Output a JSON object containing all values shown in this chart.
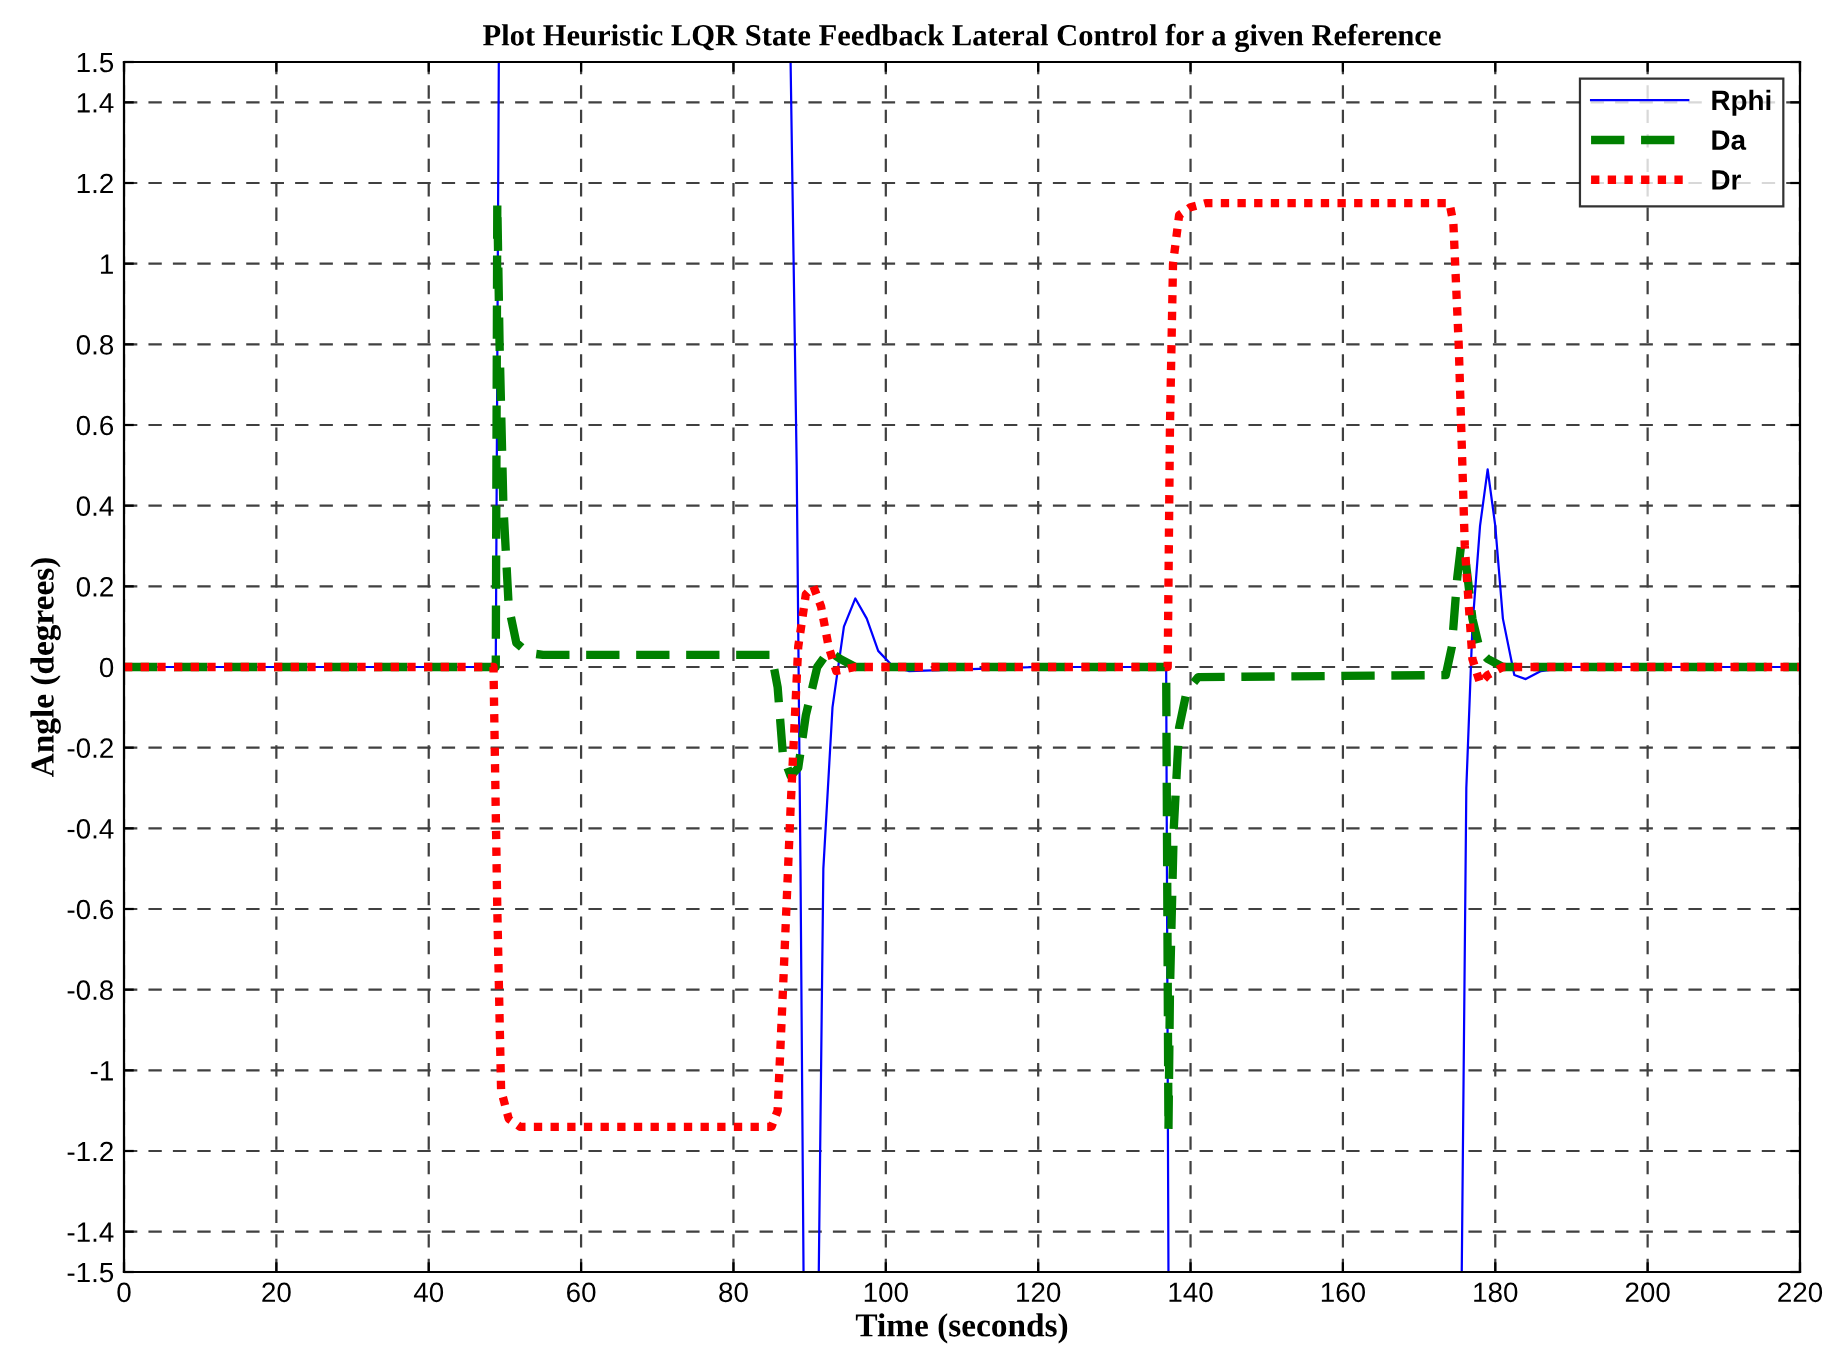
{
  "chart_data": {
    "type": "line",
    "title": "Plot Heuristic LQR State Feedback Lateral Control for a given Reference",
    "xlabel": "Time (seconds)",
    "ylabel": "Angle (degrees)",
    "xlim": [
      0,
      220
    ],
    "xticks": [
      0,
      20,
      40,
      60,
      80,
      100,
      120,
      140,
      160,
      180,
      200,
      220
    ],
    "ylim": [
      -1.5,
      1.5
    ],
    "yticks": [
      -1.5,
      -1.4,
      -1.2,
      -1,
      -0.8,
      -0.6,
      -0.4,
      -0.2,
      0,
      0.2,
      0.4,
      0.6,
      0.8,
      1,
      1.2,
      1.4,
      1.5
    ],
    "grid": true,
    "legend": "top right",
    "series": [
      {
        "name": "Rphi",
        "color": "#0000ff",
        "line_style": "solid",
        "x": [
          0,
          48.8,
          49.2,
          49.3,
          87.5,
          88.3,
          88.8,
          89.2,
          90.8,
          91.2,
          91.8,
          93,
          94.5,
          96,
          97.5,
          99,
          101,
          103,
          120,
          136.8,
          137.1,
          137.2,
          175.6,
          176.2,
          177,
          178,
          179,
          180,
          181,
          182.5,
          184,
          186,
          190,
          220
        ],
        "values": [
          0,
          0,
          1.5,
          null,
          1.5,
          0.5,
          -0.5,
          -1.5,
          null,
          -1.5,
          -0.5,
          -0.1,
          0.1,
          0.17,
          0.12,
          0.04,
          0.0,
          -0.01,
          0,
          0,
          -1.5,
          null,
          -1.5,
          -0.3,
          0.1,
          0.35,
          0.49,
          0.35,
          0.12,
          -0.02,
          -0.03,
          -0.01,
          0,
          0
        ]
      },
      {
        "name": "Da",
        "color": "#008000",
        "line_style": "dashed",
        "x": [
          0,
          48.8,
          49,
          49.3,
          49.8,
          50.5,
          51.5,
          53,
          55,
          85,
          85.8,
          86.5,
          87.5,
          88.5,
          89.5,
          91,
          92.5,
          94,
          96,
          136.8,
          137.1,
          137.3,
          137.8,
          138.5,
          139.5,
          141,
          173.5,
          174.3,
          175,
          175.5,
          176.2,
          177,
          178,
          179,
          181,
          220
        ],
        "values": [
          0,
          0,
          1.15,
          0.8,
          0.4,
          0.15,
          0.06,
          0.035,
          0.03,
          0.03,
          -0.05,
          -0.22,
          -0.27,
          -0.25,
          -0.12,
          0.0,
          0.04,
          0.02,
          0,
          0,
          -1.15,
          -0.8,
          -0.4,
          -0.15,
          -0.06,
          -0.025,
          -0.02,
          0.05,
          0.22,
          0.3,
          0.25,
          0.12,
          0.04,
          0.02,
          0,
          0
        ]
      },
      {
        "name": "Dr",
        "color": "#ff0000",
        "line_style": "dotted",
        "x": [
          0,
          48.5,
          49,
          49.5,
          50.5,
          52,
          55,
          85,
          85.8,
          86.5,
          87.5,
          88.5,
          89.5,
          90.5,
          91.5,
          92.5,
          93.5,
          96,
          137,
          137.3,
          137.7,
          138.5,
          140,
          142,
          174,
          174.5,
          175.2,
          176,
          177,
          178,
          179,
          181,
          220
        ],
        "values": [
          0,
          0,
          -0.6,
          -1.05,
          -1.12,
          -1.14,
          -1.14,
          -1.14,
          -1.1,
          -0.8,
          -0.35,
          0.05,
          0.18,
          0.2,
          0.15,
          0.05,
          -0.01,
          0,
          0,
          0.6,
          1.0,
          1.12,
          1.14,
          1.15,
          1.15,
          1.1,
          0.8,
          0.3,
          0.02,
          -0.04,
          -0.02,
          0,
          0
        ]
      }
    ]
  }
}
